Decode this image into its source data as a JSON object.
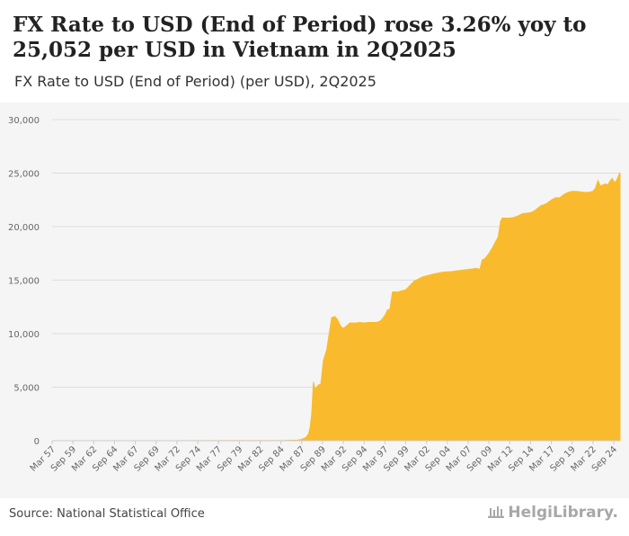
{
  "title": "FX Rate to USD (End of Period) rose 3.26% yoy to 25,052 per USD in Vietnam in 2Q2025",
  "subtitle": "FX Rate to USD (End of Period) (per USD), 2Q2025",
  "source": "Source: National Statistical Office",
  "logo_text": "HelgiLibrary.",
  "colors": {
    "fill": "#f9bb2d",
    "grid": "#dddddd",
    "axis_text": "#666666"
  },
  "chart_data": {
    "type": "area",
    "title": "FX Rate to USD (End of Period) (per USD), 2Q2025",
    "xlabel": "",
    "ylabel": "",
    "ylim": [
      0,
      30000
    ],
    "yticks": [
      0,
      5000,
      10000,
      15000,
      20000,
      25000,
      30000
    ],
    "ytick_labels": [
      "0",
      "5,000",
      "10,000",
      "15,000",
      "20,000",
      "25,000",
      "30,000"
    ],
    "xlim": [
      1957.0,
      2025.25
    ],
    "xticks": [
      1957.0,
      1959.5,
      1962.0,
      1964.5,
      1967.0,
      1969.5,
      1972.0,
      1974.5,
      1977.0,
      1979.5,
      1982.0,
      1984.5,
      1987.0,
      1989.5,
      1992.0,
      1994.5,
      1997.0,
      1999.5,
      2002.0,
      2004.5,
      2007.0,
      2009.5,
      2012.0,
      2014.5,
      2017.0,
      2019.5,
      2022.0,
      2024.5
    ],
    "xtick_labels": [
      "Mar 57",
      "Sep 59",
      "Mar 62",
      "Sep 64",
      "Mar 67",
      "Sep 69",
      "Mar 72",
      "Sep 74",
      "Mar 77",
      "Sep 79",
      "Mar 82",
      "Sep 84",
      "Mar 87",
      "Sep 89",
      "Mar 92",
      "Sep 94",
      "Mar 97",
      "Sep 99",
      "Mar 02",
      "Sep 04",
      "Mar 07",
      "Sep 09",
      "Mar 12",
      "Sep 14",
      "Mar 17",
      "Sep 19",
      "Mar 22",
      "Sep 24"
    ],
    "series": [
      {
        "name": "FX Rate to USD (End of Period)",
        "x": [
          1957.0,
          1970.0,
          1980.0,
          1985.0,
          1986.5,
          1987.0,
          1987.5,
          1987.8,
          1988.0,
          1988.2,
          1988.4,
          1988.6,
          1988.8,
          1989.0,
          1989.3,
          1989.6,
          1990.0,
          1990.3,
          1990.6,
          1991.0,
          1991.3,
          1991.6,
          1991.9,
          1992.2,
          1992.5,
          1992.8,
          1993.0,
          1993.5,
          1994.0,
          1994.5,
          1995.0,
          1995.5,
          1996.0,
          1996.5,
          1997.0,
          1997.3,
          1997.6,
          1997.9,
          1998.3,
          1998.6,
          1999.0,
          1999.5,
          2000.0,
          2000.5,
          2001.0,
          2001.5,
          2002.0,
          2003.0,
          2004.0,
          2005.0,
          2006.0,
          2007.0,
          2008.0,
          2008.4,
          2008.7,
          2009.0,
          2009.5,
          2009.9,
          2010.3,
          2010.6,
          2010.9,
          2011.1,
          2011.3,
          2011.6,
          2012.0,
          2012.5,
          2013.0,
          2013.5,
          2014.0,
          2014.5,
          2015.0,
          2015.5,
          2015.8,
          2016.0,
          2016.5,
          2017.0,
          2017.5,
          2018.0,
          2018.5,
          2019.0,
          2019.5,
          2020.0,
          2020.5,
          2021.0,
          2021.5,
          2022.0,
          2022.3,
          2022.6,
          2022.9,
          2023.2,
          2023.5,
          2023.8,
          2024.0,
          2024.3,
          2024.6,
          2024.9,
          2025.1,
          2025.25
        ],
        "values": [
          0,
          5,
          10,
          20,
          50,
          120,
          300,
          600,
          1200,
          2500,
          5500,
          4800,
          5000,
          5200,
          5300,
          7500,
          8500,
          10000,
          11500,
          11600,
          11300,
          10800,
          10500,
          10600,
          10800,
          11000,
          11000,
          11000,
          11050,
          11000,
          11050,
          11050,
          11050,
          11200,
          11700,
          12200,
          12300,
          13900,
          13900,
          13900,
          14000,
          14100,
          14500,
          14900,
          15100,
          15300,
          15400,
          15600,
          15750,
          15800,
          15900,
          16000,
          16100,
          16000,
          16900,
          17000,
          17500,
          18000,
          18600,
          19000,
          20500,
          20800,
          20800,
          20800,
          20800,
          20850,
          21000,
          21200,
          21250,
          21300,
          21500,
          21800,
          22000,
          22000,
          22200,
          22500,
          22700,
          22700,
          23000,
          23200,
          23300,
          23300,
          23250,
          23200,
          23200,
          23300,
          23600,
          24300,
          23800,
          23900,
          24000,
          23900,
          24200,
          24500,
          24100,
          24400,
          24800,
          25052
        ]
      }
    ]
  }
}
